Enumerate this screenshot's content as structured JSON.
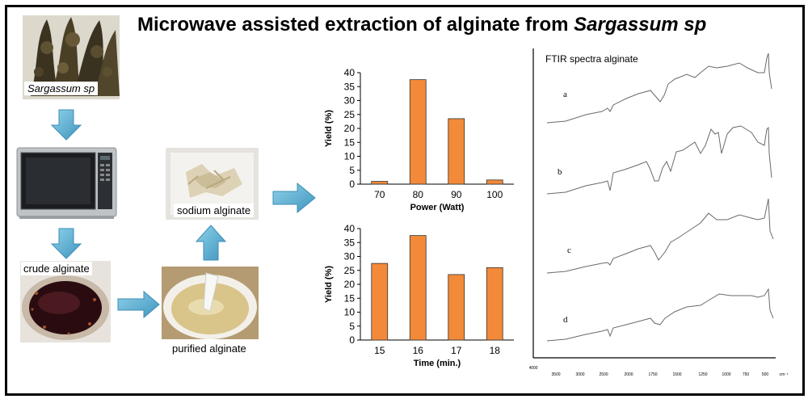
{
  "title": {
    "main": "Microwave assisted extraction of alginate from ",
    "species": "Sargassum sp"
  },
  "steps": {
    "raw": "Sargassum sp",
    "crude": "crude alginate",
    "purified": "purified alginate",
    "sodium": "sodium alginate"
  },
  "colors": {
    "bar": "#f28a3a",
    "arrow": "#4fa7cc",
    "ftir_line": "#6a6a6a"
  },
  "chart_data": [
    {
      "type": "bar",
      "title": "",
      "xlabel": "Power (Watt)",
      "ylabel": "Yield (%)",
      "categories": [
        "70",
        "80",
        "90",
        "100"
      ],
      "values": [
        1,
        37.5,
        23.5,
        1.5
      ],
      "ylim": [
        0,
        40
      ],
      "yticks": [
        "0",
        "5",
        "10",
        "15",
        "20",
        "25",
        "30",
        "35",
        "40"
      ],
      "grid": false,
      "legend": "none"
    },
    {
      "type": "bar",
      "title": "",
      "xlabel": "Time (min.)",
      "ylabel": "Yield (%)",
      "categories": [
        "15",
        "16",
        "17",
        "18"
      ],
      "values": [
        27.5,
        37.5,
        23.5,
        26
      ],
      "ylim": [
        0,
        40
      ],
      "yticks": [
        "0",
        "5",
        "10",
        "15",
        "20",
        "25",
        "30",
        "35",
        "40"
      ],
      "grid": false,
      "legend": "none"
    }
  ],
  "ftir": {
    "title": "FTIR spectra alginate",
    "traces": [
      "a",
      "b",
      "c",
      "d"
    ],
    "xticks": [
      "4000",
      "3500",
      "3000",
      "2500",
      "2000",
      "1750",
      "1500",
      "1250",
      "1000",
      "750",
      "500"
    ],
    "unit": "cm⁻¹"
  }
}
